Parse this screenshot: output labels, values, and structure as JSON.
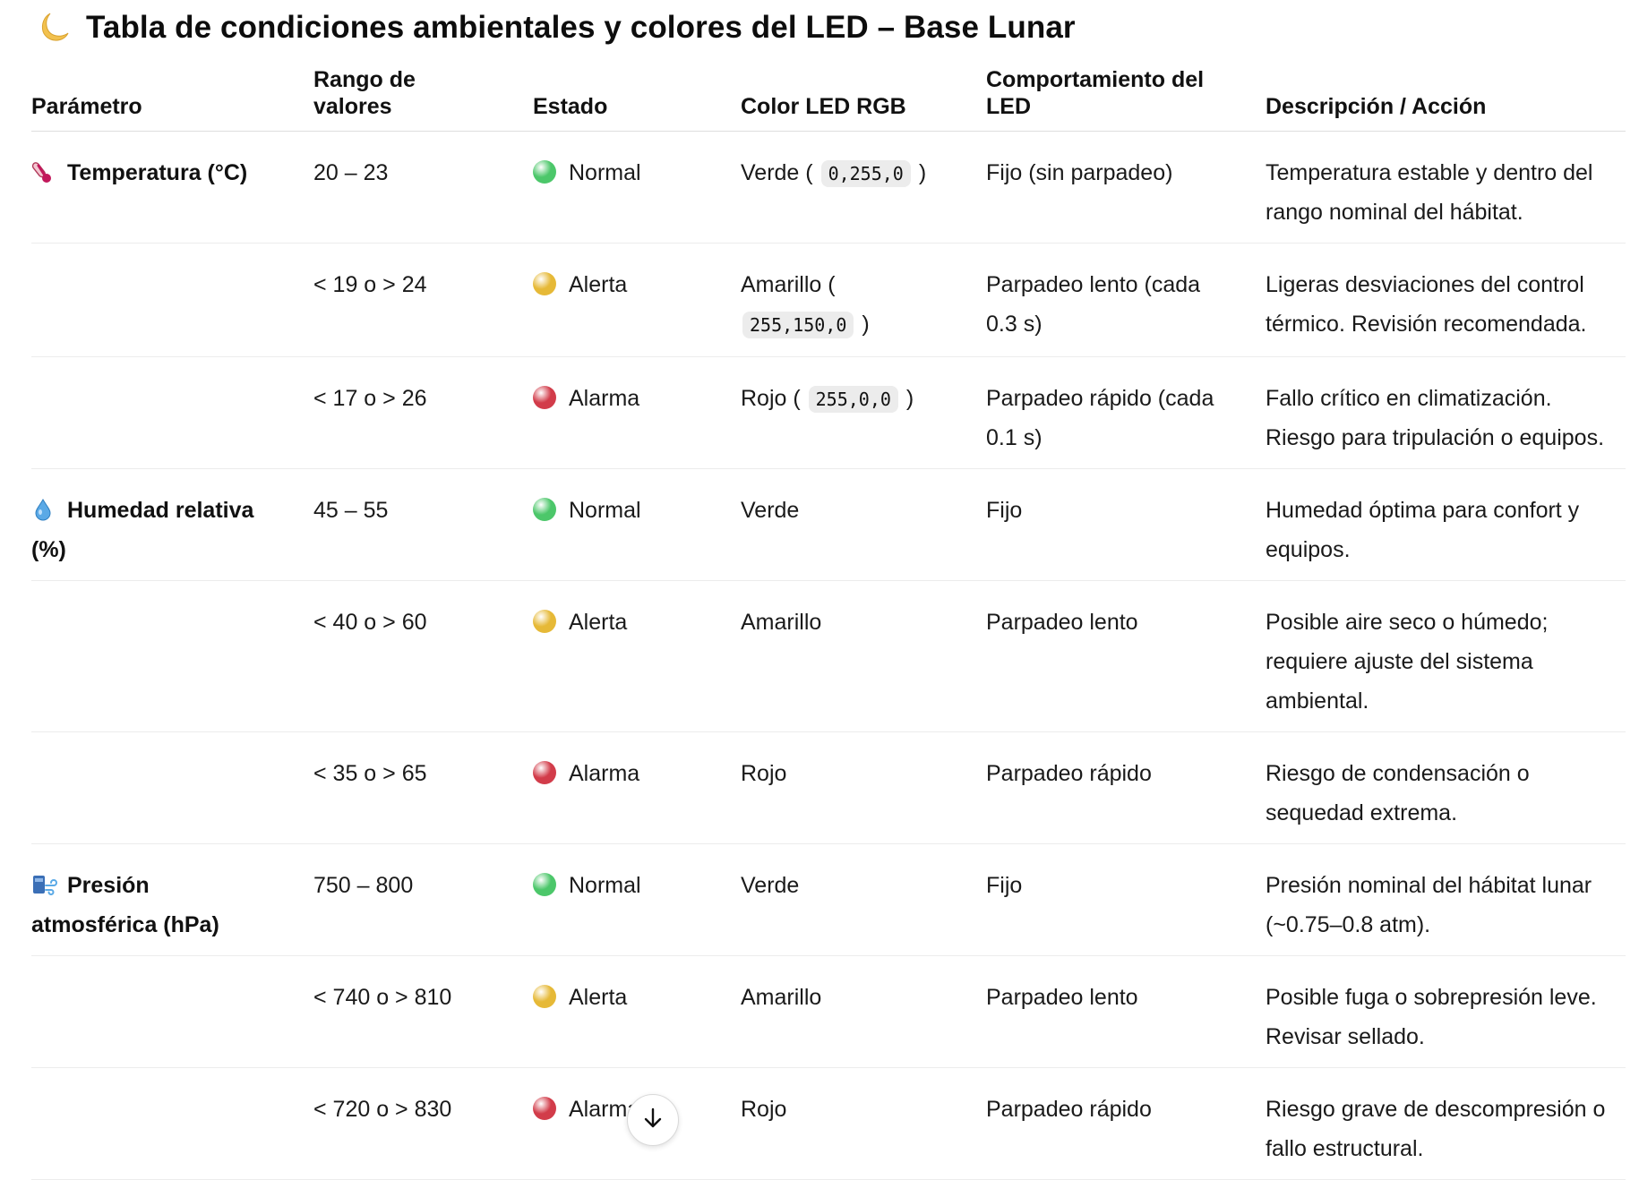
{
  "title": "Tabla de condiciones ambientales y colores del LED – Base Lunar",
  "title_icon": "crescent-moon-icon",
  "headers": [
    "Parámetro",
    "Rango de valores",
    "Estado",
    "Color LED RGB",
    "Comportamiento del LED",
    "Descripción / Acción"
  ],
  "status_colors": {
    "Normal": "#4cc76a",
    "Alerta": "#e6b937",
    "Alarma": "#d23c4a"
  },
  "rows": [
    {
      "param": "Temperatura (°C)",
      "param_icon": "thermometer-icon",
      "range": "20 – 23",
      "status": "Normal",
      "status_key": "Normal",
      "color": "Verde (",
      "rgb": "0,255,0",
      "color_end": ")",
      "behavior": "Fijo (sin parpadeo)",
      "desc": "Temperatura estable y dentro del rango nominal del hábitat."
    },
    {
      "param": "",
      "range": "< 19 o > 24",
      "status": "Alerta",
      "status_key": "Alerta",
      "color": "Amarillo (",
      "rgb": "255,150,0",
      "color_end": ")",
      "behavior": "Parpadeo lento (cada 0.3 s)",
      "desc": "Ligeras desviaciones del control térmico. Revisión recomendada."
    },
    {
      "param": "",
      "range": "< 17 o > 26",
      "status": "Alarma",
      "status_key": "Alarma",
      "color": "Rojo (",
      "rgb": "255,0,0",
      "color_end": ")",
      "behavior": "Parpadeo rápido (cada 0.1 s)",
      "desc": "Fallo crítico en climatización. Riesgo para tripulación o equipos."
    },
    {
      "param": "Humedad relativa (%)",
      "param_icon": "water-drop-icon",
      "range": "45 – 55",
      "status": "Normal",
      "status_key": "Normal",
      "color": "Verde",
      "behavior": "Fijo",
      "desc": "Humedad óptima para confort y equipos."
    },
    {
      "param": "",
      "range": "< 40 o > 60",
      "status": "Alerta",
      "status_key": "Alerta",
      "color": "Amarillo",
      "behavior": "Parpadeo lento",
      "desc": "Posible aire seco o húmedo; requiere ajuste del sistema ambiental."
    },
    {
      "param": "",
      "range": "< 35 o > 65",
      "status": "Alarma",
      "status_key": "Alarma",
      "color": "Rojo",
      "behavior": "Parpadeo rápido",
      "desc": "Riesgo de condensación o sequedad extrema."
    },
    {
      "param": "Presión atmosférica (hPa)",
      "param_icon": "wind-pressure-icon",
      "range": "750 – 800",
      "status": "Normal",
      "status_key": "Normal",
      "color": "Verde",
      "behavior": "Fijo",
      "desc": "Presión nominal del hábitat lunar (~0.75–0.8 atm)."
    },
    {
      "param": "",
      "range": "< 740 o > 810",
      "status": "Alerta",
      "status_key": "Alerta",
      "color": "Amarillo",
      "behavior": "Parpadeo lento",
      "desc": "Posible fuga o sobrepresión leve. Revisar sellado."
    },
    {
      "param": "",
      "range": "< 720 o > 830",
      "status": "Alarma",
      "status_key": "Alarma",
      "color": "Rojo",
      "behavior": "Parpadeo rápido",
      "desc": "Riesgo grave de descompresión o fallo estructural."
    }
  ],
  "scroll_icon": "arrow-down-icon"
}
